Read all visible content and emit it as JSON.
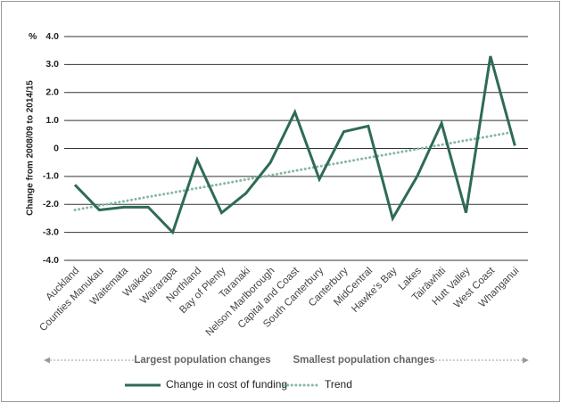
{
  "chart_data": {
    "type": "line",
    "y_unit": "%",
    "y_label": "Change from 2008/09 to 2014/15",
    "categories": [
      "Auckland",
      "Counties Manukau",
      "Waitemata",
      "Waikato",
      "Wairarapa",
      "Northland",
      "Bay of Plenty",
      "Taranaki",
      "Nelson Marlborough",
      "Capital and Coast",
      "South Canterbury",
      "Canterbury",
      "MidCentral",
      "Hawke's Bay",
      "Lakes",
      "Tairāwhiti",
      "Hutt Valley",
      "West Coast",
      "Whanganui"
    ],
    "series": [
      {
        "name": "Change in cost of funding",
        "color": "#2e6b55",
        "style": "solid",
        "values": [
          -1.3,
          -2.2,
          -2.1,
          -2.1,
          -3.0,
          -0.4,
          -2.3,
          -1.6,
          -0.5,
          1.3,
          -1.1,
          0.6,
          0.8,
          -2.5,
          -1.0,
          0.9,
          -2.3,
          3.3,
          0.1
        ]
      },
      {
        "name": "Trend",
        "color": "#86b89e",
        "style": "dotted",
        "values": [
          -2.2,
          -2.04,
          -1.89,
          -1.73,
          -1.58,
          -1.42,
          -1.27,
          -1.11,
          -0.96,
          -0.8,
          -0.64,
          -0.49,
          -0.33,
          -0.18,
          -0.02,
          0.13,
          0.29,
          0.44,
          0.6
        ]
      }
    ],
    "ylim": [
      -4,
      4
    ],
    "yticks": [
      {
        "value": -4,
        "label": "-4.0"
      },
      {
        "value": -3,
        "label": "-3.0"
      },
      {
        "value": -2,
        "label": "-2.0"
      },
      {
        "value": -1,
        "label": "-1.0"
      },
      0,
      {
        "value": 1,
        "label": "1.0"
      },
      {
        "value": 2,
        "label": "2.0"
      },
      {
        "value": 3,
        "label": "3.0"
      },
      {
        "value": 4,
        "label": "4.0"
      }
    ],
    "grid": true,
    "annotations": [
      "Largest population changes",
      "Smallest population changes"
    ]
  }
}
